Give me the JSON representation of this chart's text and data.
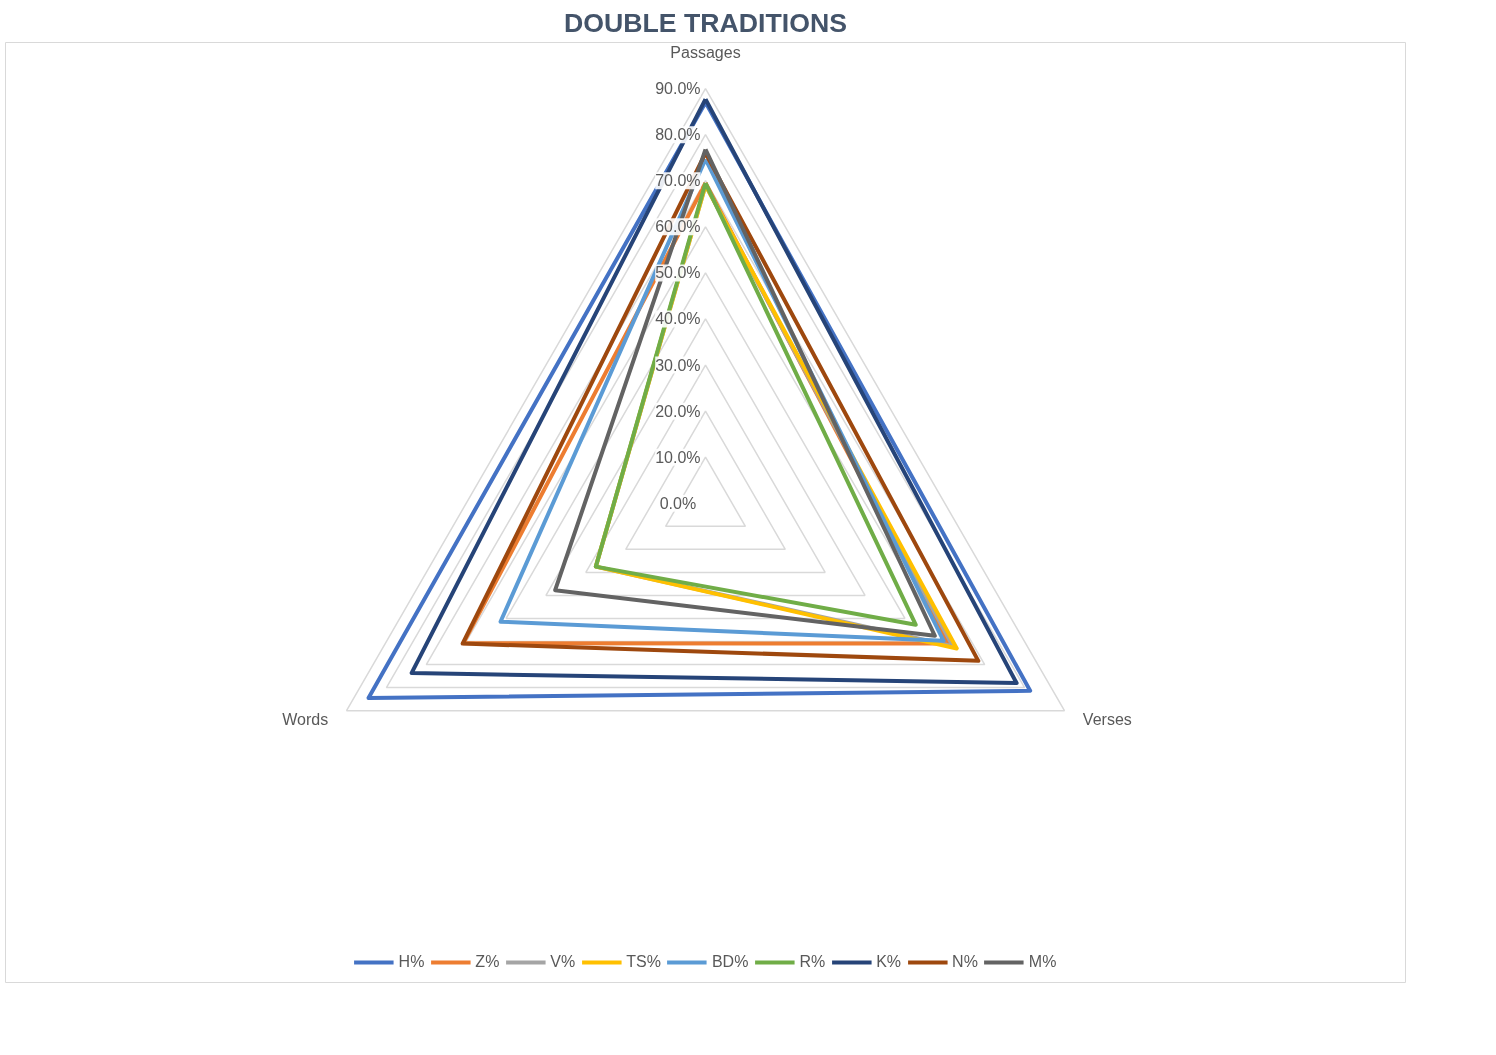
{
  "chart_data": {
    "type": "radar",
    "title": "DOUBLE TRADITIONS",
    "categories": [
      "Passages",
      "Verses",
      "Words"
    ],
    "ylim": [
      0,
      90
    ],
    "yticks": [
      {
        "value": 0,
        "label": "0.0%"
      },
      {
        "value": 10,
        "label": "10.0%"
      },
      {
        "value": 20,
        "label": "20.0%"
      },
      {
        "value": 30,
        "label": "30.0%"
      },
      {
        "value": 40,
        "label": "40.0%"
      },
      {
        "value": 50,
        "label": "50.0%"
      },
      {
        "value": 60,
        "label": "60.0%"
      },
      {
        "value": 70,
        "label": "70.0%"
      },
      {
        "value": 80,
        "label": "80.0%"
      },
      {
        "value": 90,
        "label": "90.0%"
      }
    ],
    "grid": true,
    "legend": "bottom",
    "marker": "none",
    "line_style": "solid",
    "series": [
      {
        "name": "H%",
        "color": "#4472c4",
        "values": [
          87,
          81.4,
          84.5
        ]
      },
      {
        "name": "Z%",
        "color": "#ed7d31",
        "values": [
          69.5,
          60.9,
          60.7
        ]
      },
      {
        "name": "V%",
        "color": "#a5a5a5",
        "values": [
          69,
          62,
          27.5
        ]
      },
      {
        "name": "TS%",
        "color": "#ffc000",
        "values": [
          69,
          63,
          27.5
        ]
      },
      {
        "name": "BD%",
        "color": "#5b9bd5",
        "values": [
          74.7,
          59.7,
          51.4
        ]
      },
      {
        "name": "R%",
        "color": "#70ad47",
        "values": [
          69.5,
          52.7,
          27.5
        ]
      },
      {
        "name": "K%",
        "color": "#264478",
        "values": [
          87.7,
          78,
          73.7
        ]
      },
      {
        "name": "N%",
        "color": "#9e480e",
        "values": [
          76,
          68.4,
          60.9
        ]
      },
      {
        "name": "M%",
        "color": "#636363",
        "values": [
          76.8,
          57.5,
          37.7
        ]
      }
    ]
  }
}
